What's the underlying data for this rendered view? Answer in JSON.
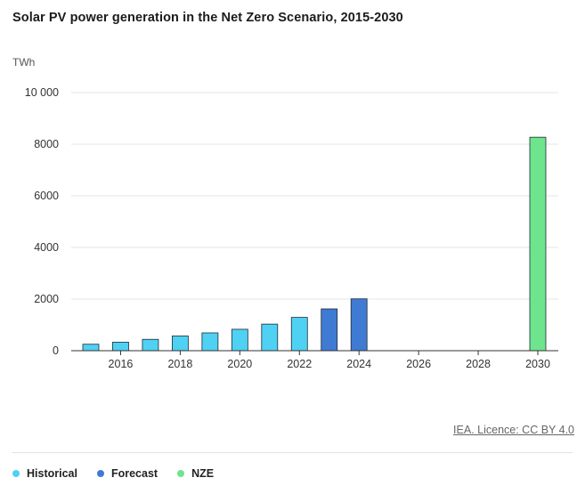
{
  "chart_data": {
    "type": "bar",
    "title": "Solar PV power generation in the Net Zero Scenario, 2015-2030",
    "ylabel": "TWh",
    "xlabel": "",
    "ylim": [
      0,
      10000
    ],
    "xlim": [
      2015,
      2030
    ],
    "y_ticks": [
      0,
      2000,
      4000,
      6000,
      8000,
      10000
    ],
    "y_tick_labels": [
      "0",
      "2000",
      "4000",
      "6000",
      "8000",
      "10 000"
    ],
    "x_ticks": [
      "2016",
      "2018",
      "2020",
      "2022",
      "2024",
      "2026",
      "2028",
      "2030"
    ],
    "grid": true,
    "legend_position": "bottom-left",
    "series": [
      {
        "name": "Historical",
        "color": "#4fd1f3",
        "points": [
          {
            "x": 2015,
            "y": 250
          },
          {
            "x": 2016,
            "y": 330
          },
          {
            "x": 2017,
            "y": 440
          },
          {
            "x": 2018,
            "y": 570
          },
          {
            "x": 2019,
            "y": 690
          },
          {
            "x": 2020,
            "y": 830
          },
          {
            "x": 2021,
            "y": 1030
          },
          {
            "x": 2022,
            "y": 1290
          }
        ]
      },
      {
        "name": "Forecast",
        "color": "#3f7ad3",
        "points": [
          {
            "x": 2023,
            "y": 1620
          },
          {
            "x": 2024,
            "y": 2010
          }
        ]
      },
      {
        "name": "NZE",
        "color": "#6ee58c",
        "points": [
          {
            "x": 2030,
            "y": 8270
          }
        ]
      }
    ]
  },
  "source": "IEA. Licence: CC BY 4.0",
  "legend": [
    {
      "label": "Historical",
      "color": "#4fd1f3"
    },
    {
      "label": "Forecast",
      "color": "#3f7ad3"
    },
    {
      "label": "NZE",
      "color": "#6ee58c"
    }
  ]
}
